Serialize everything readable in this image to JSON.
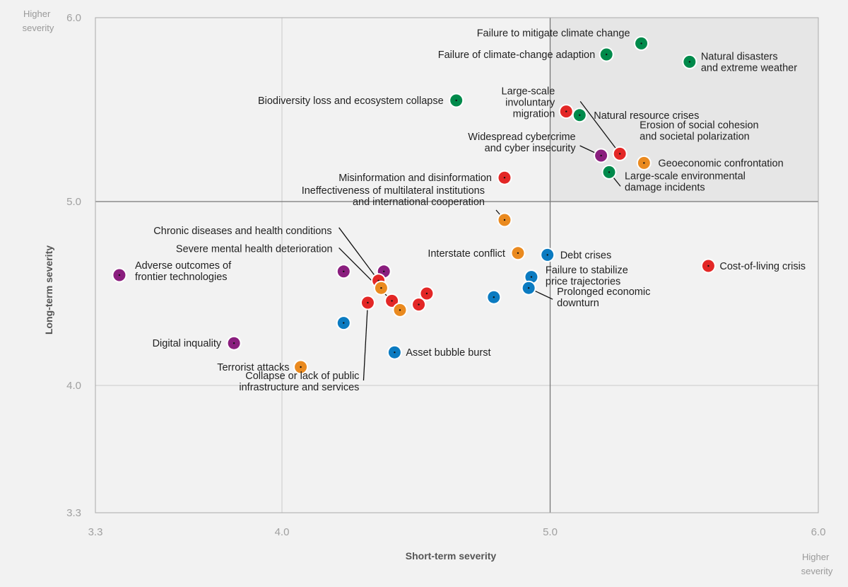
{
  "chart_data": {
    "type": "scatter",
    "xlabel": "Short-term severity",
    "ylabel": "Long-term severity",
    "xlim": [
      3.3,
      6.0
    ],
    "ylim": [
      3.3,
      6.0
    ],
    "x_ticks": [
      "3.3",
      "4.0",
      "5.0",
      "6.0"
    ],
    "y_ticks": [
      "3.3",
      "4.0",
      "5.0",
      "6.0"
    ],
    "corner_labels": {
      "top_left": [
        "Higher",
        "severity"
      ],
      "bottom_right": [
        "Higher",
        "severity"
      ]
    },
    "colors": {
      "environmental": "#008a4b",
      "societal": "#e32726",
      "geopolitical": "#ea8a1f",
      "economic": "#0b7bc1",
      "technological": "#8a1e7e"
    },
    "points": [
      {
        "x": 5.34,
        "y": 5.86,
        "cat": "environmental",
        "label": [
          "Failure to mitigate climate change"
        ]
      },
      {
        "x": 5.21,
        "y": 5.8,
        "cat": "environmental",
        "label": [
          "Failure of climate-change adaption"
        ]
      },
      {
        "x": 5.52,
        "y": 5.76,
        "cat": "environmental",
        "label": [
          "Natural disasters",
          "and extreme weather"
        ]
      },
      {
        "x": 4.65,
        "y": 5.55,
        "cat": "environmental",
        "label": [
          "Biodiversity loss and ecosystem collapse"
        ]
      },
      {
        "x": 5.06,
        "y": 5.49,
        "cat": "societal",
        "label": [
          "Large-scale",
          "involuntary",
          "migration"
        ]
      },
      {
        "x": 5.11,
        "y": 5.47,
        "cat": "environmental",
        "label": [
          "Natural resource crises"
        ]
      },
      {
        "x": 5.26,
        "y": 5.26,
        "cat": "societal",
        "label": [
          "Erosion of social cohesion",
          "and societal polarization"
        ]
      },
      {
        "x": 5.19,
        "y": 5.25,
        "cat": "technological",
        "label": [
          "Widespread cybercrime",
          "and cyber insecurity"
        ]
      },
      {
        "x": 5.35,
        "y": 5.21,
        "cat": "geopolitical",
        "label": [
          "Geoeconomic confrontation"
        ]
      },
      {
        "x": 5.22,
        "y": 5.16,
        "cat": "environmental",
        "label": [
          "Large-scale environmental",
          "damage incidents"
        ]
      },
      {
        "x": 4.83,
        "y": 5.13,
        "cat": "societal",
        "label": [
          "Misinformation and disinformation"
        ]
      },
      {
        "x": 4.83,
        "y": 4.9,
        "cat": "geopolitical",
        "label": [
          "Ineffectiveness of multilateral institutions",
          "and international cooperation"
        ]
      },
      {
        "x": 4.88,
        "y": 4.72,
        "cat": "geopolitical",
        "label": [
          "Interstate conflict"
        ]
      },
      {
        "x": 4.99,
        "y": 4.71,
        "cat": "economic",
        "label": [
          "Debt crises"
        ]
      },
      {
        "x": 5.59,
        "y": 4.65,
        "cat": "societal",
        "label": [
          "Cost-of-living crisis"
        ]
      },
      {
        "x": 4.93,
        "y": 4.59,
        "cat": "economic",
        "label": [
          "Failure to stabilize",
          "price trajectories"
        ]
      },
      {
        "x": 4.92,
        "y": 4.53,
        "cat": "economic",
        "label": [
          "Prolonged economic",
          "downturn"
        ]
      },
      {
        "x": 3.39,
        "y": 4.6,
        "cat": "technological",
        "label": [
          "Adverse outcomes of",
          "frontier technologies"
        ]
      },
      {
        "x": 4.23,
        "y": 4.62,
        "cat": "technological",
        "label": []
      },
      {
        "x": 4.38,
        "y": 4.62,
        "cat": "technological",
        "label": []
      },
      {
        "x": 4.36,
        "y": 4.57,
        "cat": "societal",
        "label": [
          "Chronic diseases and health conditions"
        ]
      },
      {
        "x": 4.37,
        "y": 4.53,
        "cat": "geopolitical",
        "label": []
      },
      {
        "x": 4.41,
        "y": 4.46,
        "cat": "societal",
        "label": [
          "Severe mental health deterioration"
        ]
      },
      {
        "x": 4.54,
        "y": 4.5,
        "cat": "societal",
        "label": []
      },
      {
        "x": 4.51,
        "y": 4.44,
        "cat": "societal",
        "label": []
      },
      {
        "x": 4.44,
        "y": 4.41,
        "cat": "geopolitical",
        "label": []
      },
      {
        "x": 4.32,
        "y": 4.45,
        "cat": "societal",
        "label": [
          "Collapse or lack of public",
          "infrastructure and services"
        ]
      },
      {
        "x": 4.79,
        "y": 4.48,
        "cat": "economic",
        "label": []
      },
      {
        "x": 4.23,
        "y": 4.34,
        "cat": "economic",
        "label": []
      },
      {
        "x": 3.82,
        "y": 4.23,
        "cat": "technological",
        "label": [
          "Digital inquality"
        ]
      },
      {
        "x": 4.42,
        "y": 4.18,
        "cat": "economic",
        "label": [
          "Asset bubble burst"
        ]
      },
      {
        "x": 4.07,
        "y": 4.1,
        "cat": "geopolitical",
        "label": [
          "Terrorist attacks"
        ]
      }
    ]
  }
}
